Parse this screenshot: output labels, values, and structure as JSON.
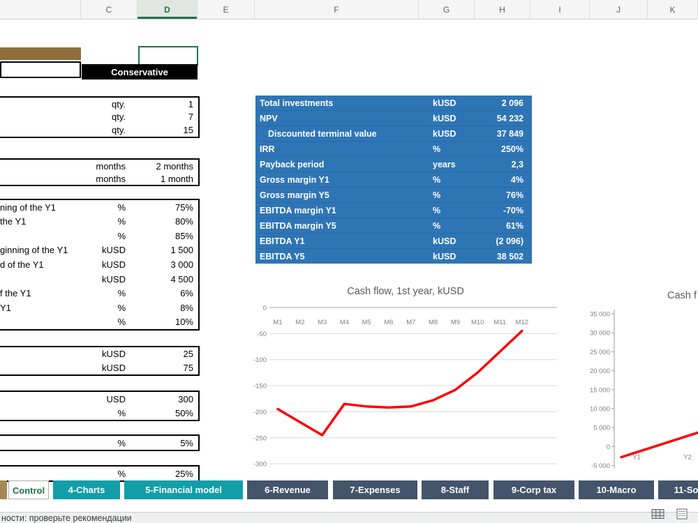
{
  "spreadsheet": {
    "column_headers": [
      "C",
      "D",
      "E",
      "F",
      "G",
      "H",
      "I",
      "J",
      "K"
    ],
    "selected_column": "D"
  },
  "scenario": {
    "header": "Conservative"
  },
  "form": {
    "groups": [
      {
        "rows": [
          {
            "unit": "qty.",
            "value": "1"
          },
          {
            "unit": "qty.",
            "value": "7"
          },
          {
            "unit": "qty.",
            "value": "15"
          }
        ]
      },
      {
        "rows": [
          {
            "unit": "months",
            "value": "2 months"
          },
          {
            "unit": "months",
            "value": "1 month"
          }
        ]
      },
      {
        "rows": [
          {
            "label": "ning of the Y1",
            "unit": "%",
            "value": "75%"
          },
          {
            "label": "the Y1",
            "unit": "%",
            "value": "80%"
          },
          {
            "label": "",
            "unit": "%",
            "value": "85%"
          },
          {
            "label": "ginning of the Y1",
            "unit": "kUSD",
            "value": "1 500"
          },
          {
            "label": "d of the Y1",
            "unit": "kUSD",
            "value": "3 000"
          },
          {
            "label": "",
            "unit": "kUSD",
            "value": "4 500"
          },
          {
            "label": "f the Y1",
            "unit": "%",
            "value": "6%"
          },
          {
            "label": "Y1",
            "unit": "%",
            "value": "8%"
          },
          {
            "label": "",
            "unit": "%",
            "value": "10%"
          }
        ]
      },
      {
        "rows": [
          {
            "unit": "kUSD",
            "value": "25"
          },
          {
            "unit": "kUSD",
            "value": "75"
          }
        ]
      },
      {
        "rows": [
          {
            "unit": "USD",
            "value": "300"
          },
          {
            "unit": "%",
            "value": "50%"
          }
        ]
      },
      {
        "rows": [
          {
            "unit": "%",
            "value": "5%"
          }
        ]
      },
      {
        "rows": [
          {
            "unit": "%",
            "value": "25%"
          }
        ]
      }
    ]
  },
  "summary_table": {
    "rows": [
      {
        "label": "Total investments",
        "unit": "kUSD",
        "value": "2 096"
      },
      {
        "label": "NPV",
        "unit": "kUSD",
        "value": "54 232"
      },
      {
        "label": "Discounted terminal value",
        "unit": "kUSD",
        "value": "37 849",
        "indent": true
      },
      {
        "label": "IRR",
        "unit": "%",
        "value": "250%"
      },
      {
        "label": "Payback period",
        "unit": "years",
        "value": "2,3"
      },
      {
        "label": "Gross margin Y1",
        "unit": "%",
        "value": "4%"
      },
      {
        "label": "Gross margin Y5",
        "unit": "%",
        "value": "76%"
      },
      {
        "label": "EBITDA margin Y1",
        "unit": "%",
        "value": "-70%"
      },
      {
        "label": "EBITDA margin Y5",
        "unit": "%",
        "value": "61%"
      },
      {
        "label": "EBITDA Y1",
        "unit": "kUSD",
        "value": "(2 096)"
      },
      {
        "label": "EBITDA Y5",
        "unit": "kUSD",
        "value": "38 502"
      }
    ]
  },
  "chart_data": [
    {
      "type": "line",
      "title": "Cash flow, 1st year, kUSD",
      "categories": [
        "M1",
        "M2",
        "M3",
        "M4",
        "M5",
        "M6",
        "M7",
        "M8",
        "M9",
        "M10",
        "M11",
        "M12"
      ],
      "values": [
        -195,
        -220,
        -245,
        -185,
        -190,
        -192,
        -190,
        -178,
        -158,
        -125,
        -85,
        -45
      ],
      "ylim": [
        -300,
        0
      ],
      "ytick_step": 50,
      "yticks": [
        "0",
        "-50",
        "-100",
        "-150",
        "-200",
        "-250",
        "-300"
      ],
      "grid": true,
      "legend": "none",
      "line_color": "#FF0000"
    },
    {
      "type": "line",
      "title": "Cash f",
      "categories": [
        "Y1",
        "Y2"
      ],
      "values": [
        -1500,
        2800
      ],
      "ylim": [
        -5000,
        35000
      ],
      "ytick_step": 5000,
      "yticks": [
        "35 000",
        "30 000",
        "25 000",
        "20 000",
        "15 000",
        "10 000",
        "5 000",
        "0",
        "-5 000"
      ],
      "grid": false,
      "legend": "none",
      "line_color": "#FF0000",
      "clipped_right": true
    }
  ],
  "sheet_tabs": {
    "active": "Control",
    "tabs": [
      {
        "label": "Control",
        "style": "active"
      },
      {
        "label": "4-Charts",
        "style": "teal"
      },
      {
        "label": "5-Financial model",
        "style": "teal"
      },
      {
        "label": "6-Revenue",
        "style": "dark"
      },
      {
        "label": "7-Expenses",
        "style": "dark"
      },
      {
        "label": "8-Staff",
        "style": "dark"
      },
      {
        "label": "9-Corp tax",
        "style": "dark"
      },
      {
        "label": "10-Macro",
        "style": "dark"
      },
      {
        "label": "11-So",
        "style": "dark"
      }
    ]
  },
  "status_bar": {
    "text": "ности: проверьте рекомендации"
  },
  "colors": {
    "accent_blue": "#2E75B6",
    "line_red": "#FF0000",
    "teal_tab": "#129EA8",
    "dark_tab": "#44546A",
    "excel_green": "#217346",
    "brown_bar": "#8F6E3C"
  }
}
